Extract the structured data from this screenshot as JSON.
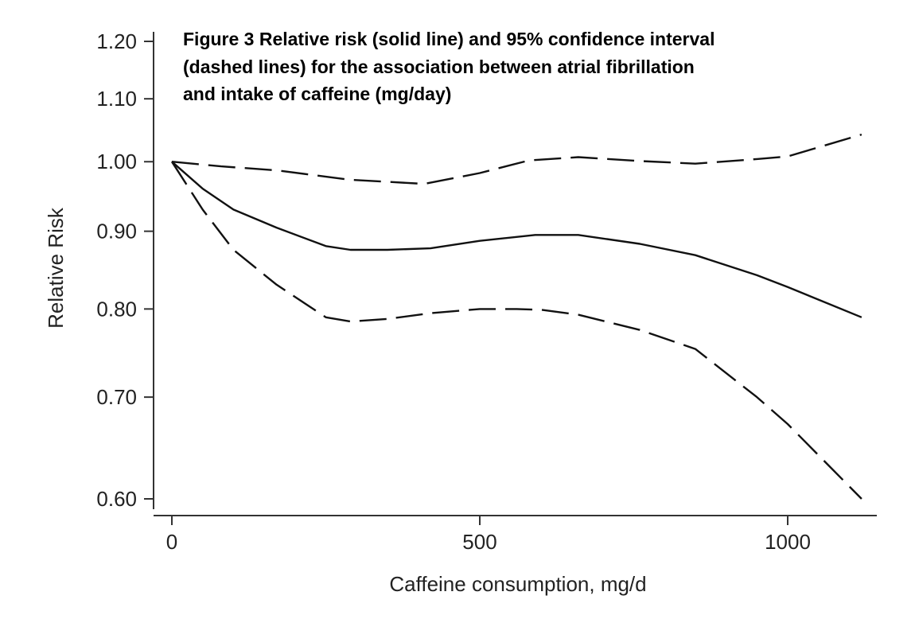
{
  "chart_data": {
    "type": "line",
    "title_lines": [
      "Figure 3 Relative risk (solid line) and 95% confidence interval",
      "(dashed lines) for the association between atrial fibrillation",
      "and intake of caffeine (mg/day)"
    ],
    "xlabel": "Caffeine consumption, mg/d",
    "ylabel": "Relative Risk",
    "xlim": [
      0,
      1150
    ],
    "ylim": [
      0.6,
      1.2
    ],
    "yscale": "log",
    "x_ticks": [
      0,
      500,
      1000
    ],
    "x_tick_labels": [
      "0",
      "500",
      "1000"
    ],
    "y_ticks": [
      0.6,
      0.7,
      0.8,
      0.9,
      1.0,
      1.1,
      1.2
    ],
    "y_tick_labels": [
      "0.60",
      "0.70",
      "0.80",
      "0.90",
      "1.00",
      "1.10",
      "1.20"
    ],
    "grid": false,
    "legend": "none",
    "series": [
      {
        "style": "solid",
        "x": [
          0,
          50,
          100,
          170,
          250,
          290,
          350,
          420,
          500,
          590,
          660,
          760,
          850,
          950,
          1000,
          1120
        ],
        "y": [
          1.0,
          0.96,
          0.93,
          0.905,
          0.88,
          0.875,
          0.875,
          0.877,
          0.887,
          0.895,
          0.895,
          0.883,
          0.868,
          0.842,
          0.827,
          0.79
        ]
      },
      {
        "style": "dashed",
        "x": [
          0,
          80,
          170,
          290,
          350,
          410,
          500,
          580,
          660,
          760,
          850,
          950,
          1000,
          1120
        ],
        "y": [
          1.0,
          0.993,
          0.987,
          0.973,
          0.97,
          0.967,
          0.983,
          1.002,
          1.007,
          1.001,
          0.997,
          1.004,
          1.008,
          1.042
        ]
      },
      {
        "style": "dashed",
        "x": [
          0,
          50,
          100,
          170,
          250,
          290,
          350,
          420,
          500,
          560,
          600,
          660,
          760,
          850,
          950,
          1000,
          1120
        ],
        "y": [
          1.0,
          0.93,
          0.875,
          0.83,
          0.79,
          0.785,
          0.788,
          0.795,
          0.8,
          0.8,
          0.799,
          0.793,
          0.775,
          0.753,
          0.7,
          0.672,
          0.6
        ]
      }
    ]
  }
}
